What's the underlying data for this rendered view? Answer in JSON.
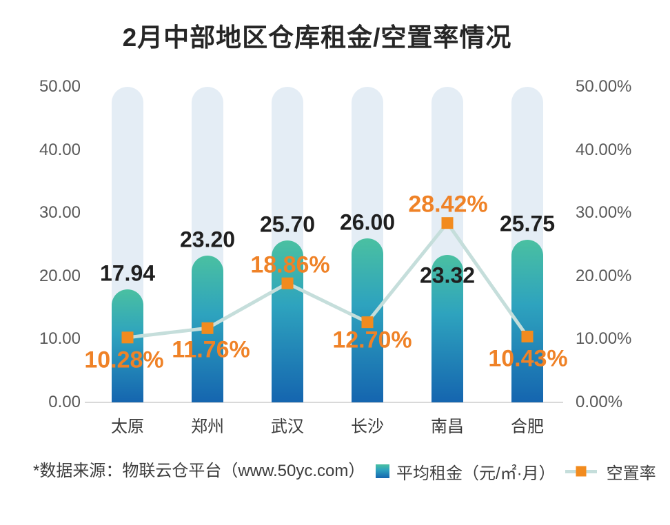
{
  "title": "2月中部地区仓库租金/空置率情况",
  "footer": {
    "source": "*数据来源：物联云仓平台（www.50yc.com）",
    "legend_rent": "平均租金（元/㎡·月）",
    "legend_vacancy": "空置率"
  },
  "colors": {
    "title_text": "#262626",
    "bar_gradient_top": "#4AC0A1",
    "bar_gradient_mid": "#2EA3BE",
    "bar_gradient_bottom": "#1565AF",
    "background_pill": "#E4EDF5",
    "line": "#C5DEDB",
    "marker": "#F28B1E",
    "vacancy_label_text": "#EF8227",
    "rent_label_text": "#1F1F1F",
    "axis_tick_text": "#595959",
    "category_text": "#3B3B3B",
    "axis_line": "#D9D9D9",
    "footer_text": "#3D3D3D"
  },
  "chart_data": {
    "type": "bar",
    "subtype": "bar-line-combo-dual-axis",
    "title": "2月中部地区仓库租金/空置率情况",
    "categories": [
      "太原",
      "郑州",
      "武汉",
      "长沙",
      "南昌",
      "合肥"
    ],
    "series": [
      {
        "name": "平均租金（元/㎡·月）",
        "type": "bar",
        "axis": "left",
        "values": [
          17.94,
          23.2,
          25.7,
          26.0,
          23.32,
          25.75
        ],
        "data_labels": [
          "17.94",
          "23.20",
          "25.70",
          "26.00",
          "23.32",
          "25.75"
        ]
      },
      {
        "name": "空置率",
        "type": "line",
        "axis": "right",
        "values": [
          10.28,
          11.76,
          18.86,
          12.7,
          28.42,
          10.43
        ],
        "data_labels": [
          "10.28%",
          "11.76%",
          "18.86%",
          "12.70%",
          "28.42%",
          "10.43%"
        ]
      }
    ],
    "left_axis": {
      "min": 0,
      "max": 50,
      "ticks_top_to_bottom": [
        "50.00",
        "40.00",
        "30.00",
        "20.00",
        "10.00",
        "0.00"
      ]
    },
    "right_axis": {
      "min": 0,
      "max": 50,
      "ticks_top_to_bottom": [
        "50.00%",
        "40.00%",
        "30.00%",
        "20.00%",
        "10.00%",
        "0.00%"
      ]
    },
    "grid": false,
    "legend_position": "bottom-right",
    "background_pills_to_max": true,
    "label_offsets": {
      "rent_dy": [
        0,
        0,
        0,
        0,
        53,
        0
      ],
      "vacancy_dx": [
        -5,
        5,
        4,
        7,
        1,
        1
      ],
      "vacancy_dy": [
        33,
        32,
        -26,
        26,
        -27,
        33
      ]
    }
  }
}
